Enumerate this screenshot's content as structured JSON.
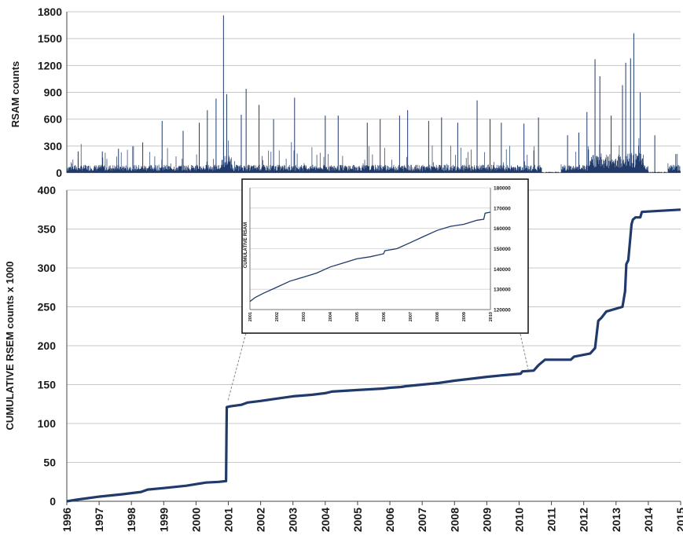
{
  "chart_data": [
    {
      "type": "bar",
      "panel": "top",
      "ylabel": "RSAM counts",
      "ylim": [
        0,
        1800
      ],
      "yticks": [
        "1800",
        "1500",
        "1200",
        "900",
        "600",
        "300",
        "0"
      ],
      "xlim": [
        1996,
        2015
      ],
      "grid": true,
      "color": "#1f3a6b",
      "spikes": [
        [
          1996.35,
          240
        ],
        [
          1997.1,
          240
        ],
        [
          1997.6,
          270
        ],
        [
          1998.35,
          340
        ],
        [
          1998.95,
          580
        ],
        [
          1999.6,
          470
        ],
        [
          2000.1,
          560
        ],
        [
          2000.35,
          700
        ],
        [
          2000.62,
          830
        ],
        [
          2000.85,
          1760
        ],
        [
          2000.95,
          880
        ],
        [
          2001.4,
          650
        ],
        [
          2001.55,
          940
        ],
        [
          2001.95,
          760
        ],
        [
          2002.4,
          600
        ],
        [
          2003.05,
          840
        ],
        [
          2004.0,
          640
        ],
        [
          2004.4,
          640
        ],
        [
          2005.3,
          560
        ],
        [
          2005.7,
          600
        ],
        [
          2006.3,
          640
        ],
        [
          2006.55,
          700
        ],
        [
          2007.2,
          580
        ],
        [
          2007.6,
          620
        ],
        [
          2008.1,
          560
        ],
        [
          2008.7,
          810
        ],
        [
          2009.1,
          600
        ],
        [
          2009.45,
          560
        ],
        [
          2010.15,
          550
        ],
        [
          2010.6,
          620
        ],
        [
          2011.5,
          420
        ],
        [
          2011.85,
          450
        ],
        [
          2012.1,
          680
        ],
        [
          2012.35,
          1270
        ],
        [
          2012.5,
          1080
        ],
        [
          2012.85,
          640
        ],
        [
          2013.2,
          980
        ],
        [
          2013.3,
          1230
        ],
        [
          2013.45,
          1280
        ],
        [
          2013.55,
          1560
        ],
        [
          2013.75,
          900
        ],
        [
          2014.2,
          420
        ],
        [
          2014.85,
          210
        ]
      ],
      "quiet_periods": [
        [
          2010.7,
          2011.3
        ],
        [
          2014.0,
          2014.6
        ]
      ]
    },
    {
      "type": "line",
      "panel": "main",
      "ylabel": "CUMULATIVE RSEM counts  x 1000",
      "ylim": [
        0,
        400
      ],
      "yticks": [
        "400",
        "350",
        "300",
        "250",
        "200",
        "150",
        "100",
        "50",
        "0"
      ],
      "xlim": [
        1996,
        2015
      ],
      "xticks": [
        "1996",
        "1997",
        "1998",
        "1999",
        "2000",
        "2001",
        "2002",
        "2003",
        "2004",
        "2005",
        "2006",
        "2007",
        "2008",
        "2009",
        "2010",
        "2011",
        "2012",
        "2013",
        "2014",
        "2015"
      ],
      "grid": true,
      "color": "#1f3a6b",
      "x": [
        1996.0,
        1996.3,
        1997.0,
        1997.7,
        1998.3,
        1998.5,
        1999.0,
        1999.7,
        2000.0,
        2000.3,
        2000.7,
        2000.93,
        2000.95,
        2001.05,
        2001.4,
        2001.6,
        2002.0,
        2002.5,
        2003.0,
        2003.6,
        2004.0,
        2004.2,
        2005.0,
        2005.8,
        2006.0,
        2006.35,
        2006.5,
        2007.0,
        2007.5,
        2008.0,
        2008.6,
        2009.0,
        2009.5,
        2010.05,
        2010.1,
        2010.45,
        2010.6,
        2010.8,
        2011.0,
        2011.6,
        2011.7,
        2012.2,
        2012.35,
        2012.45,
        2012.55,
        2012.7,
        2013.2,
        2013.28,
        2013.32,
        2013.38,
        2013.48,
        2013.52,
        2013.6,
        2013.75,
        2013.8,
        2014.2,
        2015.0
      ],
      "y": [
        0,
        2,
        6,
        9,
        12,
        15,
        17,
        20,
        22,
        24,
        25,
        26,
        121,
        122,
        124,
        127,
        129,
        132,
        135,
        137,
        139,
        141,
        143,
        145,
        146,
        147,
        148,
        150,
        152,
        155,
        158,
        160,
        162,
        164,
        167,
        168,
        175,
        182,
        182,
        182,
        186,
        190,
        197,
        232,
        236,
        244,
        250,
        270,
        305,
        310,
        356,
        362,
        365,
        365,
        372,
        373,
        375
      ]
    },
    {
      "type": "line",
      "panel": "inset",
      "ylabel": "CUMULATIVE RSAM",
      "ylim": [
        120000,
        180000
      ],
      "yticks": [
        "180000",
        "170000",
        "160000",
        "150000",
        "140000",
        "130000",
        "120000"
      ],
      "xlim": [
        2001,
        2010
      ],
      "xticks": [
        "2001",
        "2002",
        "2003",
        "2004",
        "2005",
        "2006",
        "2007",
        "2008",
        "2009",
        "2010"
      ],
      "grid": true,
      "color": "#1f3a6b",
      "x": [
        2001.0,
        2001.2,
        2001.5,
        2002.0,
        2002.5,
        2003.0,
        2003.5,
        2004.0,
        2004.5,
        2005.0,
        2005.5,
        2006.0,
        2006.05,
        2006.5,
        2007.0,
        2007.5,
        2008.0,
        2008.5,
        2009.0,
        2009.5,
        2009.75,
        2009.8,
        2010.0
      ],
      "y": [
        124000,
        126000,
        128000,
        131000,
        134000,
        136000,
        138000,
        141000,
        143000,
        145000,
        146000,
        147500,
        149000,
        150000,
        153000,
        156000,
        159000,
        161000,
        162000,
        164000,
        164500,
        167500,
        168000
      ]
    }
  ]
}
